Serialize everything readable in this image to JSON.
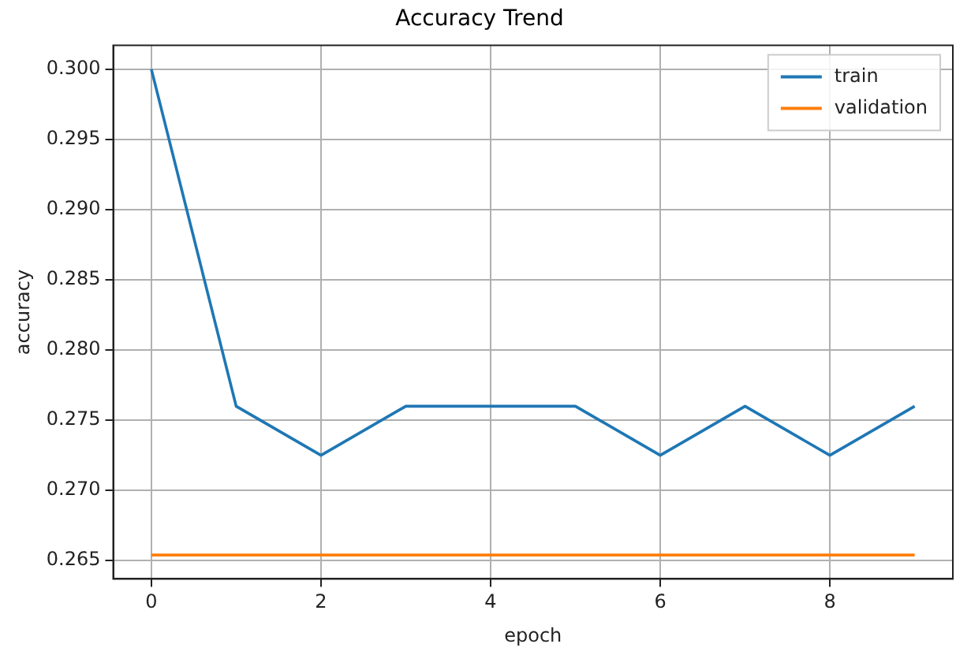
{
  "chart_data": {
    "type": "line",
    "title": "Accuracy Trend",
    "xlabel": "epoch",
    "ylabel": "accuracy",
    "x": [
      0,
      1,
      2,
      3,
      4,
      5,
      6,
      7,
      8,
      9
    ],
    "series": [
      {
        "name": "train",
        "color": "#1f77b4",
        "values": [
          0.3,
          0.276,
          0.2725,
          0.276,
          0.276,
          0.276,
          0.2725,
          0.276,
          0.2725,
          0.276
        ]
      },
      {
        "name": "validation",
        "color": "#ff7f0e",
        "values": [
          0.2654,
          0.2654,
          0.2654,
          0.2654,
          0.2654,
          0.2654,
          0.2654,
          0.2654,
          0.2654,
          0.2654
        ]
      }
    ],
    "xlim": [
      -0.45,
      9.45
    ],
    "xticks": [
      0,
      2,
      4,
      6,
      8
    ],
    "ylim": [
      0.2637,
      0.3017
    ],
    "yticks": [
      0.265,
      {
        "value": 0.27,
        "label": "0.270"
      },
      0.275,
      {
        "value": 0.28,
        "label": "0.280"
      },
      0.285,
      {
        "value": 0.29,
        "label": "0.290"
      },
      0.295,
      {
        "value": 0.3,
        "label": "0.300"
      }
    ],
    "grid": true,
    "legend": "top right",
    "marker": "none",
    "line_style": "solid"
  }
}
